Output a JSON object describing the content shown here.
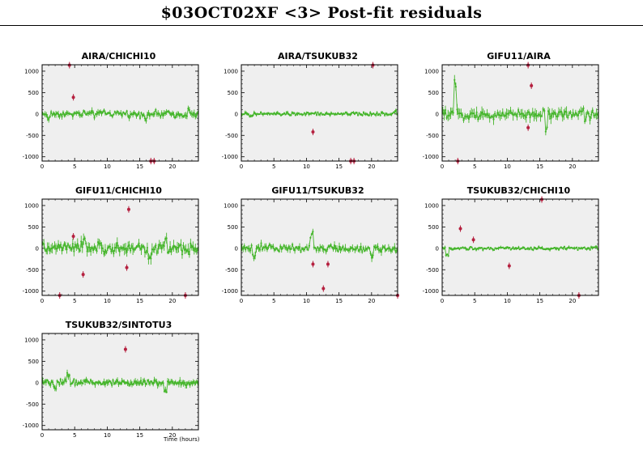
{
  "header": {
    "title": "$03OCT02XF <3> Post-fit residuals"
  },
  "colors": {
    "frame_bg": "#efefef",
    "normal": "#44b52a",
    "outlier": "#b5203f"
  },
  "chart_data": [
    {
      "type": "scatter",
      "title": "AIRA/CHICHI10",
      "xlim": [
        0,
        24
      ],
      "ylim": [
        -1100,
        1150
      ],
      "xticks": [
        "0",
        "5",
        "10",
        "15",
        "20"
      ],
      "yticks": [
        "1000",
        "500",
        "0",
        "-500",
        "-1000"
      ],
      "xlabel": "",
      "grid": false,
      "outliers": [
        {
          "x": 4.2,
          "y": 1140
        },
        {
          "x": 4.8,
          "y": 390
        },
        {
          "x": 16.7,
          "y": -1100
        },
        {
          "x": 17.2,
          "y": -1100
        }
      ],
      "series": {
        "n": 130,
        "spread": 55,
        "bumps": [
          [
            1.0,
            -90
          ],
          [
            9.5,
            40
          ],
          [
            16.0,
            -60
          ],
          [
            22.5,
            80
          ]
        ]
      }
    },
    {
      "type": "scatter",
      "title": "AIRA/TSUKUB32",
      "xlim": [
        0,
        24
      ],
      "ylim": [
        -1100,
        1150
      ],
      "xticks": [
        "0",
        "5",
        "10",
        "15",
        "20"
      ],
      "yticks": [
        "1000",
        "500",
        "0",
        "-500",
        "-1000"
      ],
      "xlabel": "",
      "grid": false,
      "outliers": [
        {
          "x": 20.2,
          "y": 1140
        },
        {
          "x": 11.0,
          "y": -420
        },
        {
          "x": 16.8,
          "y": -1100
        },
        {
          "x": 17.3,
          "y": -1100
        }
      ],
      "series": {
        "n": 140,
        "spread": 30,
        "bumps": [
          [
            1.5,
            -60
          ],
          [
            23.5,
            60
          ]
        ]
      }
    },
    {
      "type": "scatter",
      "title": "GIFU11/AIRA",
      "xlim": [
        0,
        24
      ],
      "ylim": [
        -1100,
        1150
      ],
      "xticks": [
        "0",
        "5",
        "10",
        "15",
        "20"
      ],
      "yticks": [
        "1000",
        "500",
        "0",
        "-500",
        "-1000"
      ],
      "xlabel": "",
      "grid": false,
      "outliers": [
        {
          "x": 13.2,
          "y": 1140
        },
        {
          "x": 13.7,
          "y": 660
        },
        {
          "x": 13.2,
          "y": -320
        },
        {
          "x": 2.4,
          "y": -1100
        }
      ],
      "series": {
        "n": 120,
        "spread": 90,
        "bumps": [
          [
            2.0,
            650
          ],
          [
            7.5,
            -150
          ],
          [
            16.0,
            -400
          ],
          [
            22.0,
            -200
          ]
        ]
      }
    },
    {
      "type": "scatter",
      "title": "GIFU11/CHICHI10",
      "xlim": [
        0,
        24
      ],
      "ylim": [
        -1100,
        1150
      ],
      "xticks": [
        "0",
        "5",
        "10",
        "15",
        "20"
      ],
      "yticks": [
        "1000",
        "500",
        "0",
        "-500",
        "-1000"
      ],
      "xlabel": "",
      "grid": false,
      "outliers": [
        {
          "x": 13.3,
          "y": 910
        },
        {
          "x": 4.8,
          "y": 280
        },
        {
          "x": 6.3,
          "y": -610
        },
        {
          "x": 13.0,
          "y": -450
        },
        {
          "x": 2.7,
          "y": -1100
        },
        {
          "x": 22.0,
          "y": -1100
        }
      ],
      "series": {
        "n": 130,
        "spread": 95,
        "bumps": [
          [
            6.5,
            200
          ],
          [
            16.5,
            -250
          ],
          [
            19.0,
            250
          ]
        ]
      }
    },
    {
      "type": "scatter",
      "title": "GIFU11/TSUKUB32",
      "xlim": [
        0,
        24
      ],
      "ylim": [
        -1100,
        1150
      ],
      "xticks": [
        "0",
        "5",
        "10",
        "15",
        "20"
      ],
      "yticks": [
        "1000",
        "500",
        "0",
        "-500",
        "-1000"
      ],
      "xlabel": "",
      "grid": false,
      "outliers": [
        {
          "x": 11.0,
          "y": -370
        },
        {
          "x": 13.3,
          "y": -370
        },
        {
          "x": 12.6,
          "y": -940
        },
        {
          "x": 24.0,
          "y": -1100
        }
      ],
      "series": {
        "n": 130,
        "spread": 65,
        "bumps": [
          [
            10.8,
            300
          ],
          [
            2.0,
            -160
          ],
          [
            20.0,
            -140
          ]
        ]
      }
    },
    {
      "type": "scatter",
      "title": "TSUKUB32/CHICHI10",
      "xlim": [
        0,
        24
      ],
      "ylim": [
        -1100,
        1150
      ],
      "xticks": [
        "0",
        "5",
        "10",
        "15",
        "20"
      ],
      "yticks": [
        "1000",
        "500",
        "0",
        "-500",
        "-1000"
      ],
      "xlabel": "",
      "grid": false,
      "outliers": [
        {
          "x": 2.8,
          "y": 460
        },
        {
          "x": 4.8,
          "y": 200
        },
        {
          "x": 10.3,
          "y": -410
        },
        {
          "x": 15.3,
          "y": 1140
        },
        {
          "x": 21.0,
          "y": -1100
        }
      ],
      "series": {
        "n": 140,
        "spread": 28,
        "bumps": [
          [
            0.8,
            -160
          ],
          [
            23.5,
            50
          ]
        ]
      }
    },
    {
      "type": "scatter",
      "title": "TSUKUB32/SINTOTU3",
      "xlim": [
        0,
        24
      ],
      "ylim": [
        -1100,
        1150
      ],
      "xticks": [
        "0",
        "5",
        "10",
        "15",
        "20"
      ],
      "yticks": [
        "1000",
        "500",
        "0",
        "-500",
        "-1000"
      ],
      "xlabel": "Time (hours)",
      "grid": false,
      "outliers": [
        {
          "x": 12.8,
          "y": 780
        }
      ],
      "series": {
        "n": 140,
        "spread": 55,
        "bumps": [
          [
            4.0,
            200
          ],
          [
            19.0,
            -150
          ],
          [
            2.0,
            -120
          ]
        ]
      }
    }
  ]
}
